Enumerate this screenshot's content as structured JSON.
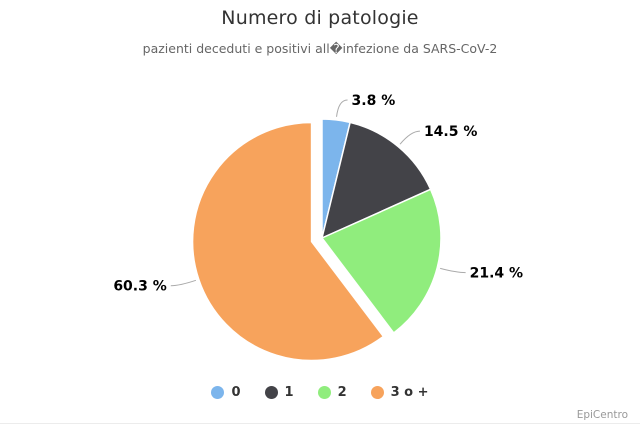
{
  "title": "Numero di patologie",
  "subtitle": "pazienti deceduti e positivi all�infezione da SARS-CoV-2",
  "credits": "EpiCentro",
  "chart_data": {
    "type": "pie",
    "title": "Numero di patologie",
    "subtitle": "pazienti deceduti e positivi all�infezione da SARS-CoV-2",
    "categories": [
      "0",
      "1",
      "2",
      "3 o +"
    ],
    "values": [
      3.8,
      14.5,
      21.4,
      60.3
    ],
    "unit": "%",
    "data_labels": [
      "3.8 %",
      "14.5 %",
      "21.4 %",
      "60.3 %"
    ],
    "colors": [
      "#7cb5ec",
      "#434348",
      "#90ed7d",
      "#f7a35c"
    ],
    "sliced_index": 3,
    "start_angle_deg": 0,
    "direction": "clockwise",
    "legend_position": "bottom",
    "credits_text": "EpiCentro"
  }
}
